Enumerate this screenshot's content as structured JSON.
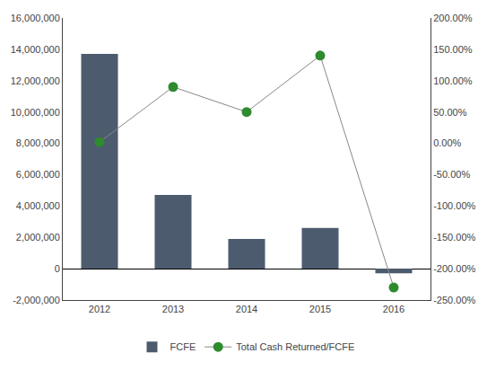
{
  "chart_data": {
    "type": "bar",
    "categories": [
      "2012",
      "2013",
      "2014",
      "2015",
      "2016"
    ],
    "series": [
      {
        "name": "FCFE",
        "type": "bar",
        "color": "#4D5B6E",
        "values": [
          13700000,
          4700000,
          1900000,
          2600000,
          -300000
        ]
      },
      {
        "name": "Total Cash Returned/FCFE",
        "type": "line",
        "axis": "y2",
        "color": "#888888",
        "marker": "circle",
        "colors": [
          "#2E8B2E",
          "#2E8B2E",
          "#2E8B2E",
          "#2E8B2E",
          "#2E8B2E"
        ],
        "values": [
          0.02,
          0.9,
          0.5,
          1.4,
          -2.3
        ]
      }
    ],
    "ylim": [
      -2000000,
      16000000
    ],
    "yticks": [
      {
        "value": -2000000,
        "label": "-2,000,000"
      },
      0,
      {
        "value": 2000000,
        "label": "2,000,000"
      },
      {
        "value": 4000000,
        "label": "4,000,000"
      },
      {
        "value": 6000000,
        "label": "6,000,000"
      },
      {
        "value": 8000000,
        "label": "8,000,000"
      },
      {
        "value": 10000000,
        "label": "10,000,000"
      },
      {
        "value": 12000000,
        "label": "12,000,000"
      },
      {
        "value": 14000000,
        "label": "14,000,000"
      },
      {
        "value": 16000000,
        "label": "16,000,000"
      }
    ],
    "y2lim": [
      -2.5,
      2.0
    ],
    "y2ticks": [
      {
        "value": -2.5,
        "label": "-250.00%"
      },
      {
        "value": -2.0,
        "label": "-200.00%"
      },
      {
        "value": -1.5,
        "label": "-150.00%"
      },
      {
        "value": -1.0,
        "label": "-100.00%"
      },
      {
        "value": -0.5,
        "label": "-50.00%"
      },
      {
        "value": 0.0,
        "label": "0.00%"
      },
      {
        "value": 0.5,
        "label": "50.00%"
      },
      {
        "value": 1.0,
        "label": "100.00%"
      },
      {
        "value": 1.5,
        "label": "150.00%"
      },
      {
        "value": 2.0,
        "label": "200.00%"
      }
    ],
    "grid": false,
    "legend": "bottom"
  }
}
